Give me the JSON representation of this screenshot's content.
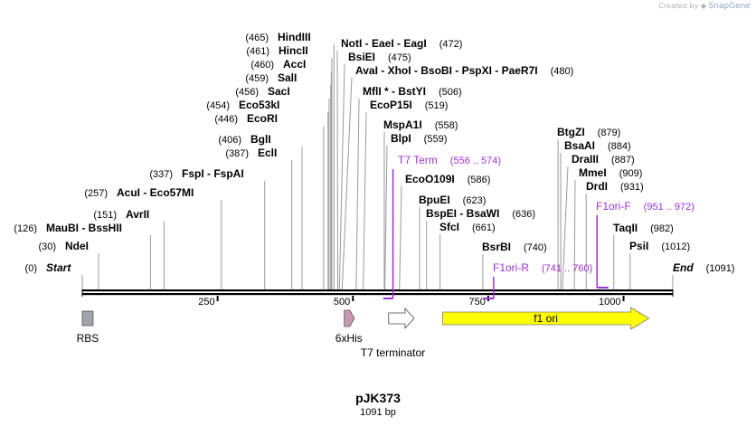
{
  "credit": {
    "prefix": "Created by",
    "brand": "SnapGene"
  },
  "plasmid": {
    "name": "pJK373",
    "length_label": "1091 bp",
    "length": 1091
  },
  "colors": {
    "primer": "#9b30d9",
    "f1ori": "#ffff00",
    "rbs": "#a0a4a8",
    "his": "#c898b0",
    "backbone": "#000000",
    "line": "#9a9a9a"
  },
  "chart_data": {
    "type": "linear_plasmid_map",
    "range": [
      0,
      1091
    ],
    "ticks": [
      250,
      500,
      750,
      1000
    ],
    "sites": [
      {
        "id": "start",
        "label": "Start",
        "pos": "(0)",
        "bp": 0,
        "italic": true
      },
      {
        "id": "ndei",
        "label": "NdeI",
        "pos": "(30)",
        "bp": 30
      },
      {
        "id": "maubi",
        "label": "MauBI  -  BssHII",
        "pos": "(126)",
        "bp": 126
      },
      {
        "id": "avrii",
        "label": "AvrII",
        "pos": "(151)",
        "bp": 151
      },
      {
        "id": "acui",
        "label": "AcuI  -  Eco57MI",
        "pos": "(257)",
        "bp": 257
      },
      {
        "id": "fspi",
        "label": "FspI  -  FspAI",
        "pos": "(337)",
        "bp": 337
      },
      {
        "id": "ecli",
        "label": "EclI",
        "pos": "(387)",
        "bp": 387
      },
      {
        "id": "bgli",
        "label": "BglI",
        "pos": "(406)",
        "bp": 406
      },
      {
        "id": "ecori",
        "label": "EcoRI",
        "pos": "(446)",
        "bp": 446
      },
      {
        "id": "eco53ki",
        "label": "Eco53kI",
        "pos": "(454)",
        "bp": 454
      },
      {
        "id": "saci",
        "label": "SacI",
        "pos": "(456)",
        "bp": 456
      },
      {
        "id": "sali",
        "label": "SalI",
        "pos": "(459)",
        "bp": 459
      },
      {
        "id": "acci",
        "label": "AccI",
        "pos": "(460)",
        "bp": 460
      },
      {
        "id": "hincii",
        "label": "HincII",
        "pos": "(461)",
        "bp": 461
      },
      {
        "id": "hindiii",
        "label": "HindIII",
        "pos": "(465)",
        "bp": 465
      },
      {
        "id": "noti",
        "label": "NotI  -  EaeI  -  EagI",
        "pos": "(472)",
        "bp": 472
      },
      {
        "id": "bsiei",
        "label": "BsiEI",
        "pos": "(475)",
        "bp": 475
      },
      {
        "id": "avai",
        "label": "AvaI  -  XhoI  -  BsoBI  -  PspXI  -  PaeR7I",
        "pos": "(480)",
        "bp": 480
      },
      {
        "id": "mfli",
        "label": "MflI *  -  BstYI",
        "pos": "(506)",
        "bp": 506
      },
      {
        "id": "ecop15i",
        "label": "EcoP15I",
        "pos": "(519)",
        "bp": 519
      },
      {
        "id": "mspa1i",
        "label": "MspA1I",
        "pos": "(558)",
        "bp": 558
      },
      {
        "id": "blpi",
        "label": "BlpI",
        "pos": "(559)",
        "bp": 559
      },
      {
        "id": "ecoo109i",
        "label": "EcoO109I",
        "pos": "(586)",
        "bp": 586
      },
      {
        "id": "bpuei",
        "label": "BpuEI",
        "pos": "(623)",
        "bp": 623
      },
      {
        "id": "bspei",
        "label": "BspEI  -  BsaWI",
        "pos": "(636)",
        "bp": 636
      },
      {
        "id": "sfci",
        "label": "SfcI",
        "pos": "(661)",
        "bp": 661
      },
      {
        "id": "bsrbi",
        "label": "BsrBI",
        "pos": "(740)",
        "bp": 740
      },
      {
        "id": "btgzi",
        "label": "BtgZI",
        "pos": "(879)",
        "bp": 879
      },
      {
        "id": "bsaai",
        "label": "BsaAI",
        "pos": "(884)",
        "bp": 884
      },
      {
        "id": "draiii",
        "label": "DraIII",
        "pos": "(887)",
        "bp": 887
      },
      {
        "id": "mmei",
        "label": "MmeI",
        "pos": "(909)",
        "bp": 909
      },
      {
        "id": "drdi",
        "label": "DrdI",
        "pos": "(931)",
        "bp": 931
      },
      {
        "id": "taqii",
        "label": "TaqII",
        "pos": "(982)",
        "bp": 982
      },
      {
        "id": "psii",
        "label": "PsiI",
        "pos": "(1012)",
        "bp": 1012
      },
      {
        "id": "end",
        "label": "End",
        "pos": "(1091)",
        "bp": 1091,
        "italic": true
      }
    ],
    "primers": [
      {
        "id": "t7term",
        "label": "T7 Term",
        "range": "(556 .. 574)",
        "start": 556,
        "end": 574
      },
      {
        "id": "f1ori-r",
        "label": "F1ori-R",
        "range": "(741 .. 760)",
        "start": 741,
        "end": 760
      },
      {
        "id": "f1ori-f",
        "label": "F1ori-F",
        "range": "(951 .. 972)",
        "start": 951,
        "end": 972
      }
    ],
    "features": [
      {
        "id": "rbs",
        "label": "RBS",
        "start": 0,
        "end": 20,
        "shape": "box"
      },
      {
        "id": "6xhis",
        "label": "6xHis",
        "start": 484,
        "end": 501,
        "shape": "arrow"
      },
      {
        "id": "t7-terminator",
        "label": "T7 terminator",
        "start": 566,
        "end": 613,
        "shape": "arrow"
      },
      {
        "id": "f1-ori",
        "label": "f1 ori",
        "start": 666,
        "end": 1047,
        "shape": "arrow",
        "inner_label": true
      }
    ]
  }
}
